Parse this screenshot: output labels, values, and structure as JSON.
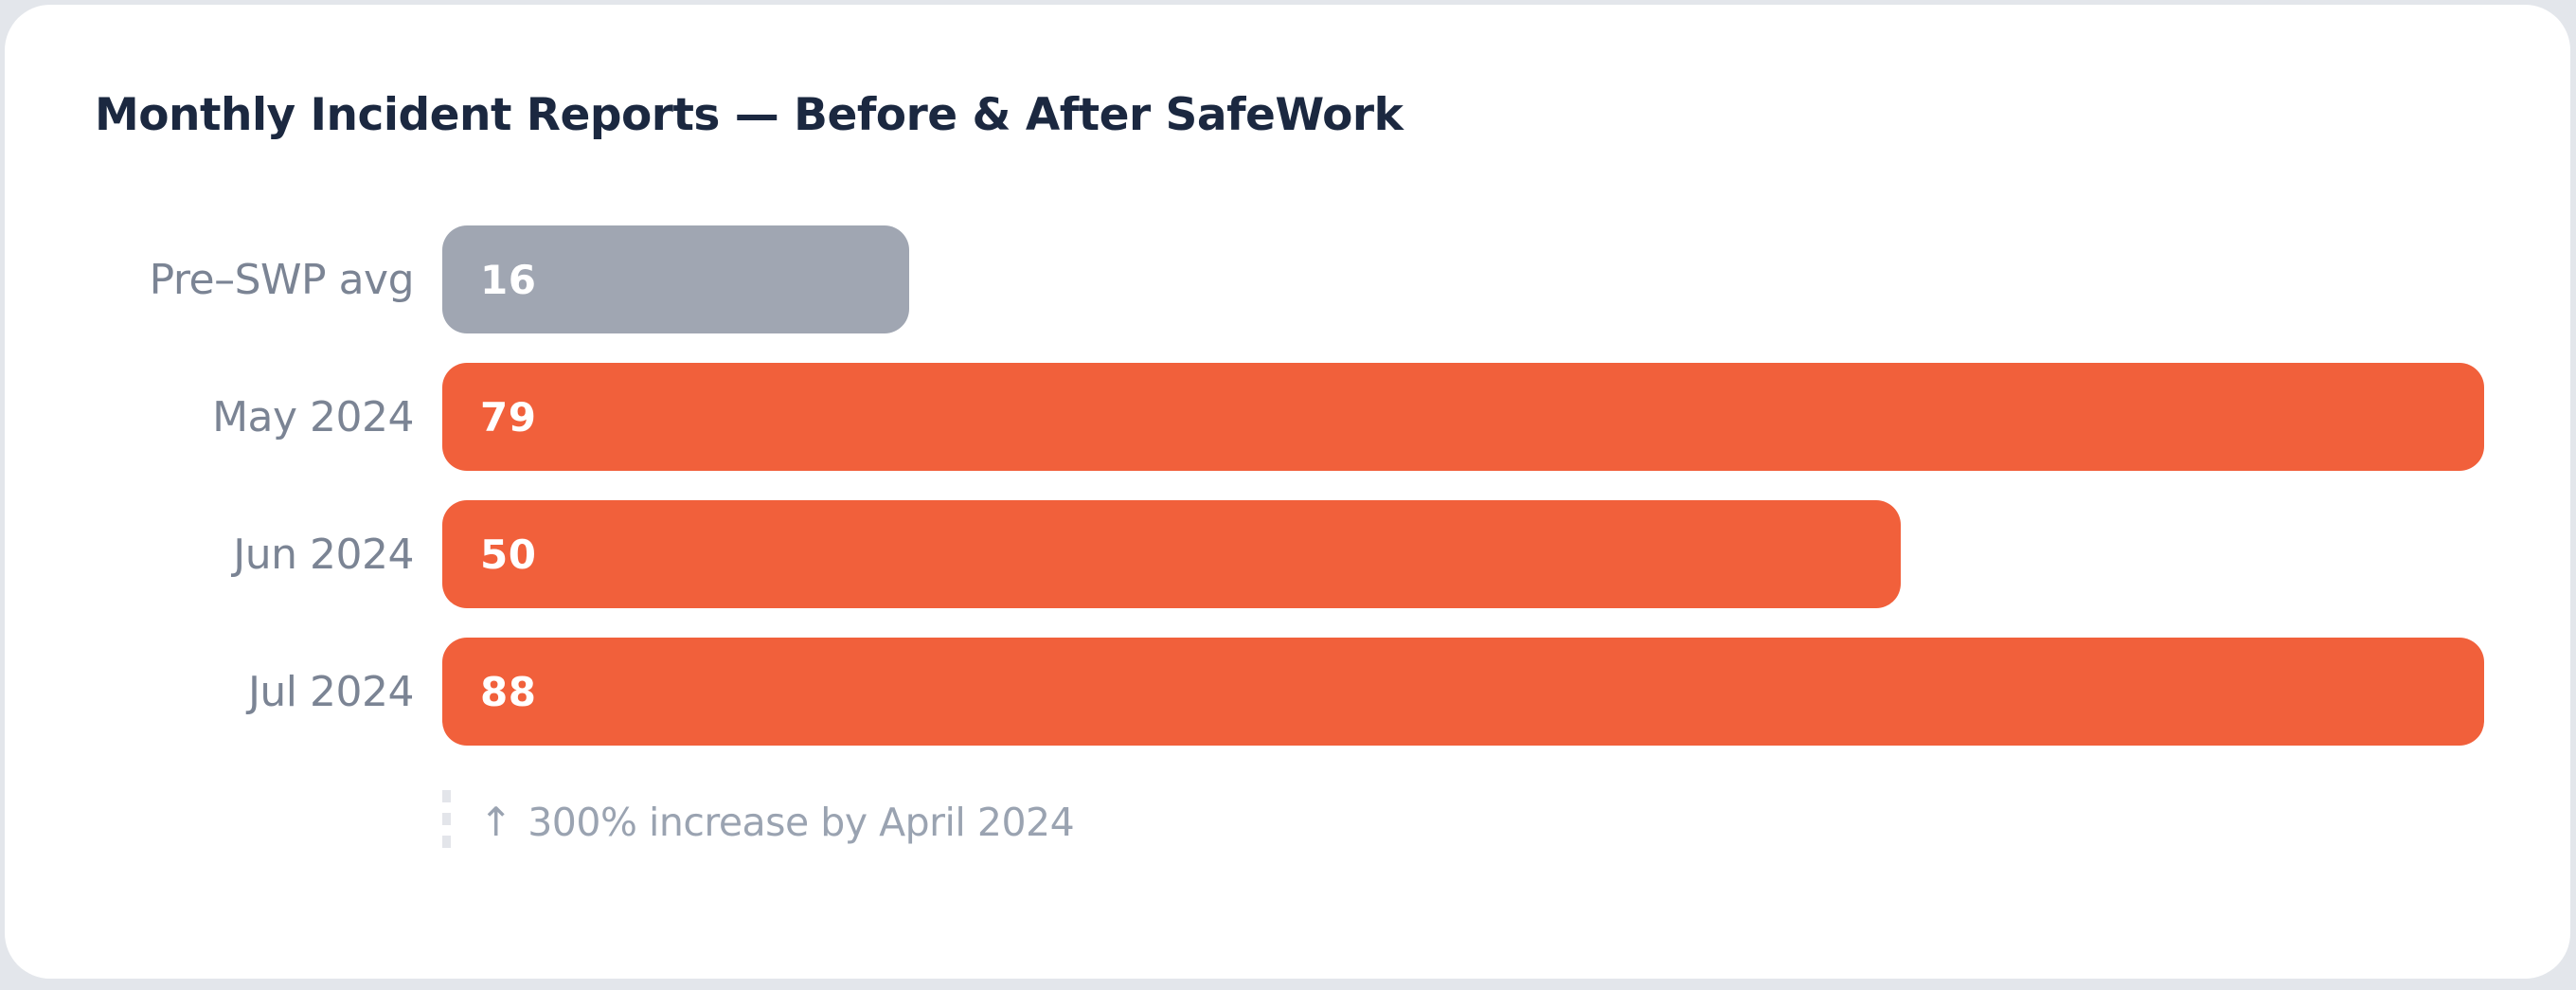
{
  "chart_data": {
    "type": "bar",
    "orientation": "horizontal",
    "title": "Monthly Incident Reports — Before & After SafeWork",
    "categories": [
      "Pre–SWP avg",
      "May 2024",
      "Jun 2024",
      "Jul 2024"
    ],
    "values": [
      16,
      79,
      50,
      88
    ],
    "series": [
      {
        "name": "Monthly incident reports",
        "values": [
          16,
          79,
          50,
          88
        ]
      }
    ],
    "bar_colors": [
      "#A0A6B2",
      "#F1603B",
      "#F1603B",
      "#F1603B"
    ],
    "value_label_color": "#FFFFFF",
    "axes_visible": false,
    "grid": false,
    "legend": false,
    "track_full_value": 70,
    "annotation": {
      "arrow_icon": "↑",
      "text": "300% increase by April 2024"
    }
  },
  "colors": {
    "page_background": "#E3E6EB",
    "card_background": "#FFFFFF",
    "title_text": "#1B2840",
    "category_label_text": "#7B8494",
    "baseline_bar": "#A0A6B2",
    "accent_bar": "#F1603B",
    "annotation_text": "#9AA3B1",
    "dotted_line": "#E3E5EA"
  }
}
